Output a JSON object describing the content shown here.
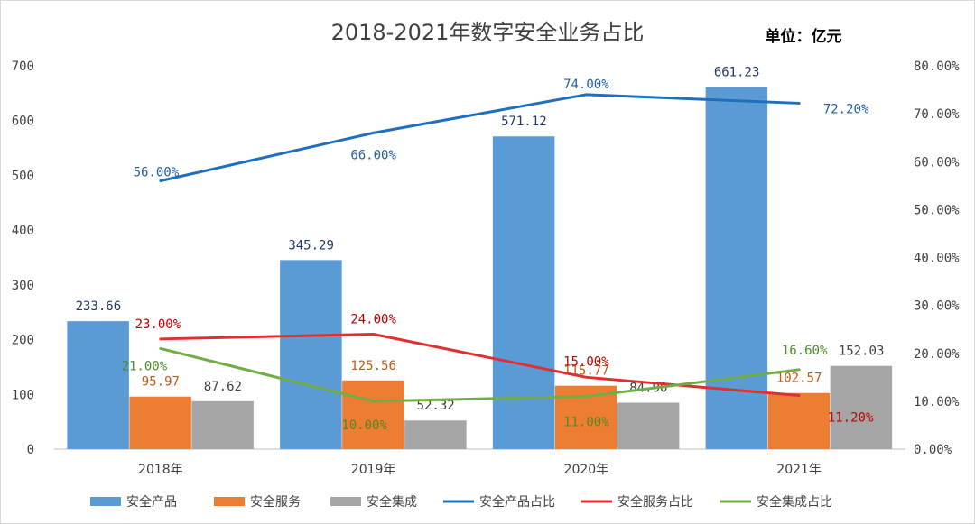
{
  "chart_data": {
    "type": "bar",
    "title": "2018-2021年数字安全业务占比",
    "unit_label": "单位：亿元",
    "categories": [
      "2018年",
      "2019年",
      "2020年",
      "2021年"
    ],
    "y_left": {
      "min": 0,
      "max": 700,
      "step": 100,
      "ticks": [
        "0",
        "100",
        "200",
        "300",
        "400",
        "500",
        "600",
        "700"
      ]
    },
    "y_right": {
      "min": 0,
      "max": 80,
      "step": 10,
      "ticks": [
        "0.00%",
        "10.00%",
        "20.00%",
        "30.00%",
        "40.00%",
        "50.00%",
        "60.00%",
        "70.00%",
        "80.00%"
      ]
    },
    "bar_series": [
      {
        "name": "安全产品",
        "color": "#5B9BD5",
        "values": [
          233.66,
          345.29,
          571.12,
          661.23
        ],
        "labels": [
          "233.66",
          "345.29",
          "571.12",
          "661.23"
        ],
        "label_color": "#1F3864"
      },
      {
        "name": "安全服务",
        "color": "#ED7D31",
        "values": [
          95.97,
          125.56,
          115.77,
          102.57
        ],
        "labels": [
          "95.97",
          "125.56",
          "115.77",
          "102.57"
        ],
        "label_color": "#C55A11"
      },
      {
        "name": "安全集成",
        "color": "#A5A5A5",
        "values": [
          87.62,
          52.32,
          84.9,
          152.03
        ],
        "labels": [
          "87.62",
          "52.32",
          "84.90",
          "152.03"
        ],
        "label_color": "#404040"
      }
    ],
    "line_series": [
      {
        "name": "安全产品占比",
        "color": "#1F6FBF",
        "values": [
          56.0,
          66.0,
          74.0,
          72.2
        ],
        "labels": [
          "56.00%",
          "66.00%",
          "74.00%",
          "72.20%"
        ],
        "label_color": "#1F5FA8"
      },
      {
        "name": "安全服务占比",
        "color": "#E02F2F",
        "values": [
          23.0,
          24.0,
          15.0,
          11.2
        ],
        "labels": [
          "23.00%",
          "24.00%",
          "15.00%",
          "11.20%"
        ],
        "label_color": "#C00000"
      },
      {
        "name": "安全集成占比",
        "color": "#70AD47",
        "values": [
          21.0,
          10.0,
          11.0,
          16.6
        ],
        "labels": [
          "21.00%",
          "10.00%",
          "11.00%",
          "16.60%"
        ],
        "label_color": "#4E8A2A"
      }
    ],
    "legend_position": "bottom",
    "grid": false
  }
}
